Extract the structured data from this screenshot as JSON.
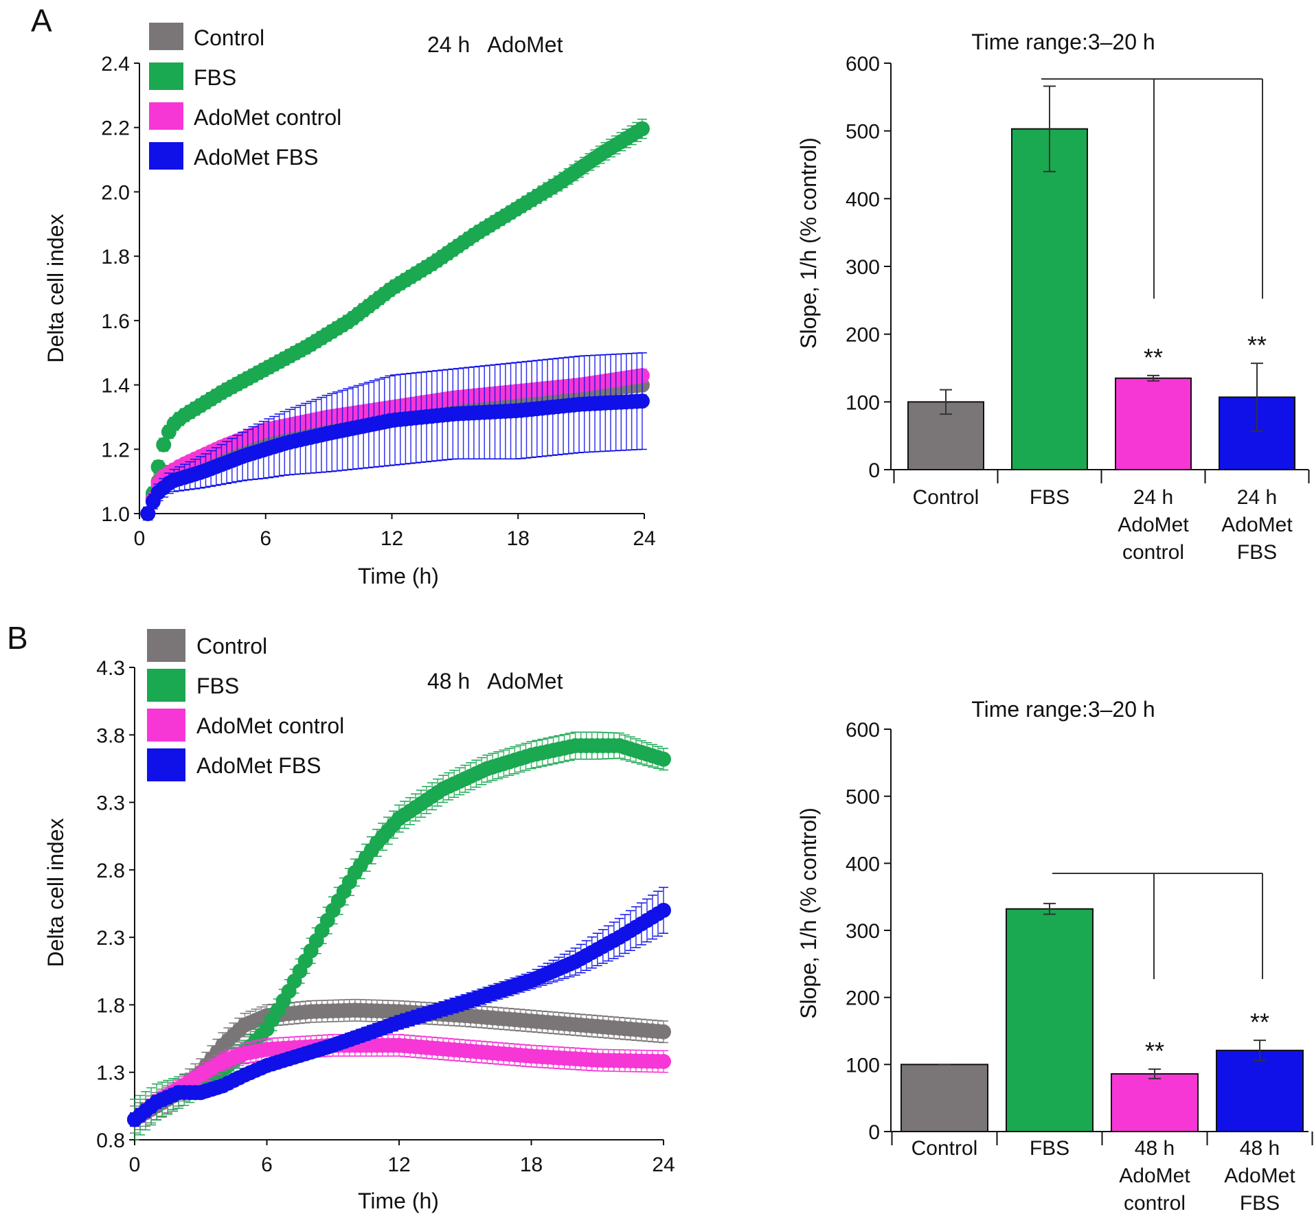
{
  "panels": [
    {
      "letter": "A",
      "annotation": "24 h   AdoMet",
      "legend": [
        {
          "label": "Control",
          "color": "#7a7677"
        },
        {
          "label": "FBS",
          "color": "#1aa850"
        },
        {
          "label": "AdoMet control",
          "color": "#f736d6"
        },
        {
          "label": "AdoMet FBS",
          "color": "#0f11e8"
        }
      ],
      "line_chart": {
        "type": "line",
        "xlabel": "Time (h)",
        "ylabel": "Delta cell index",
        "xlim": [
          0,
          24
        ],
        "ylim": [
          1.0,
          2.4
        ],
        "xticks": [
          0,
          6,
          12,
          18,
          24
        ],
        "yticks": [
          "1.0",
          "1.2",
          "1.4",
          "1.6",
          "1.8",
          "2.0",
          "2.2",
          "2.4"
        ],
        "series": [
          {
            "name": "Control",
            "color": "#7a7677",
            "points": [
              [
                0.4,
                1.0
              ],
              [
                1,
                1.12
              ],
              [
                2,
                1.14
              ],
              [
                4,
                1.19
              ],
              [
                6,
                1.22
              ],
              [
                9,
                1.26
              ],
              [
                12,
                1.3
              ],
              [
                15,
                1.33
              ],
              [
                18,
                1.36
              ],
              [
                21,
                1.38
              ],
              [
                24,
                1.4
              ]
            ],
            "err": [
              [
                0.4,
                0.02
              ],
              [
                6,
                0.03
              ],
              [
                12,
                0.03
              ],
              [
                18,
                0.03
              ],
              [
                24,
                0.03
              ]
            ]
          },
          {
            "name": "FBS",
            "color": "#1aa850",
            "points": [
              [
                0.4,
                1.0
              ],
              [
                0.8,
                1.1
              ],
              [
                1,
                1.19
              ],
              [
                1.5,
                1.27
              ],
              [
                2,
                1.3
              ],
              [
                4,
                1.38
              ],
              [
                6,
                1.45
              ],
              [
                8,
                1.52
              ],
              [
                10,
                1.6
              ],
              [
                12,
                1.7
              ],
              [
                14,
                1.78
              ],
              [
                16,
                1.87
              ],
              [
                18,
                1.95
              ],
              [
                20,
                2.03
              ],
              [
                22,
                2.12
              ],
              [
                24,
                2.2
              ]
            ],
            "err": [
              [
                0.4,
                0.02
              ],
              [
                6,
                0.02
              ],
              [
                12,
                0.02
              ],
              [
                18,
                0.02
              ],
              [
                24,
                0.03
              ]
            ]
          },
          {
            "name": "AdoMet control",
            "color": "#f736d6",
            "points": [
              [
                0.4,
                1.0
              ],
              [
                1,
                1.11
              ],
              [
                2,
                1.15
              ],
              [
                4,
                1.21
              ],
              [
                6,
                1.26
              ],
              [
                9,
                1.3
              ],
              [
                12,
                1.33
              ],
              [
                15,
                1.36
              ],
              [
                18,
                1.38
              ],
              [
                21,
                1.4
              ],
              [
                24,
                1.43
              ]
            ],
            "err": [
              [
                0.4,
                0.01
              ],
              [
                6,
                0.02
              ],
              [
                12,
                0.02
              ],
              [
                18,
                0.02
              ],
              [
                24,
                0.02
              ]
            ]
          },
          {
            "name": "AdoMet FBS",
            "color": "#0f11e8",
            "points": [
              [
                0.4,
                1.0
              ],
              [
                0.8,
                1.06
              ],
              [
                1.5,
                1.1
              ],
              [
                3,
                1.13
              ],
              [
                5,
                1.18
              ],
              [
                7,
                1.22
              ],
              [
                9,
                1.25
              ],
              [
                12,
                1.29
              ],
              [
                15,
                1.31
              ],
              [
                18,
                1.32
              ],
              [
                21,
                1.34
              ],
              [
                24,
                1.35
              ]
            ],
            "err": [
              [
                0.4,
                0.02
              ],
              [
                3,
                0.05
              ],
              [
                6,
                0.09
              ],
              [
                9,
                0.12
              ],
              [
                12,
                0.14
              ],
              [
                15,
                0.14
              ],
              [
                18,
                0.15
              ],
              [
                21,
                0.15
              ],
              [
                24,
                0.15
              ]
            ]
          }
        ]
      },
      "bar_chart": {
        "type": "bar",
        "title": "Time range:3–20 h",
        "ylabel": "Slope, 1/h (% control)",
        "ylim": [
          0,
          600
        ],
        "yticks": [
          "0",
          "100",
          "200",
          "300",
          "400",
          "500",
          "600"
        ],
        "categories": [
          {
            "lines": [
              "Control"
            ]
          },
          {
            "lines": [
              "FBS"
            ]
          },
          {
            "lines": [
              "24 h",
              "AdoMet",
              "control"
            ]
          },
          {
            "lines": [
              "24 h",
              "AdoMet",
              "FBS"
            ]
          }
        ],
        "values": [
          100,
          503,
          135,
          107
        ],
        "errors": [
          18,
          63,
          4,
          50
        ],
        "colors": [
          "#7a7677",
          "#1aa850",
          "#f736d6",
          "#0f11e8"
        ],
        "significance": [
          "",
          "",
          "**",
          "**"
        ]
      }
    },
    {
      "letter": "B",
      "annotation": "48 h   AdoMet",
      "legend": [
        {
          "label": "Control",
          "color": "#7a7677"
        },
        {
          "label": "FBS",
          "color": "#1aa850"
        },
        {
          "label": "AdoMet control",
          "color": "#f736d6"
        },
        {
          "label": "AdoMet FBS",
          "color": "#0f11e8"
        }
      ],
      "line_chart": {
        "type": "line",
        "xlabel": "Time (h)",
        "ylabel": "Delta cell index",
        "xlim": [
          0,
          24
        ],
        "ylim": [
          0.8,
          4.3
        ],
        "xticks": [
          0,
          6,
          12,
          18,
          24
        ],
        "yticks": [
          "0.8",
          "1.3",
          "1.8",
          "2.3",
          "2.8",
          "3.3",
          "3.8",
          "4.3"
        ],
        "series": [
          {
            "name": "Control",
            "color": "#7a7677",
            "points": [
              [
                0,
                0.95
              ],
              [
                1,
                1.05
              ],
              [
                2,
                1.15
              ],
              [
                3,
                1.3
              ],
              [
                4,
                1.5
              ],
              [
                5,
                1.65
              ],
              [
                6,
                1.72
              ],
              [
                8,
                1.75
              ],
              [
                10,
                1.76
              ],
              [
                12,
                1.75
              ],
              [
                15,
                1.72
              ],
              [
                18,
                1.68
              ],
              [
                21,
                1.64
              ],
              [
                24,
                1.6
              ]
            ],
            "err": [
              [
                0,
                0.1
              ],
              [
                3,
                0.1
              ],
              [
                6,
                0.08
              ],
              [
                9,
                0.08
              ],
              [
                12,
                0.08
              ],
              [
                15,
                0.08
              ],
              [
                18,
                0.08
              ],
              [
                21,
                0.08
              ],
              [
                24,
                0.08
              ]
            ]
          },
          {
            "name": "FBS",
            "color": "#1aa850",
            "points": [
              [
                0,
                0.95
              ],
              [
                1,
                1.08
              ],
              [
                2,
                1.15
              ],
              [
                3,
                1.22
              ],
              [
                4,
                1.32
              ],
              [
                5,
                1.45
              ],
              [
                6,
                1.62
              ],
              [
                7,
                1.9
              ],
              [
                8,
                2.2
              ],
              [
                9,
                2.5
              ],
              [
                10,
                2.78
              ],
              [
                11,
                3.0
              ],
              [
                12,
                3.18
              ],
              [
                14,
                3.4
              ],
              [
                16,
                3.55
              ],
              [
                18,
                3.65
              ],
              [
                20,
                3.72
              ],
              [
                22,
                3.72
              ],
              [
                24,
                3.62
              ]
            ],
            "err": [
              [
                0,
                0.15
              ],
              [
                3,
                0.1
              ],
              [
                6,
                0.08
              ],
              [
                9,
                0.1
              ],
              [
                12,
                0.1
              ],
              [
                15,
                0.1
              ],
              [
                18,
                0.1
              ],
              [
                21,
                0.1
              ],
              [
                24,
                0.08
              ]
            ]
          },
          {
            "name": "AdoMet control",
            "color": "#f736d6",
            "points": [
              [
                0,
                0.95
              ],
              [
                1,
                1.08
              ],
              [
                2,
                1.18
              ],
              [
                3,
                1.28
              ],
              [
                4,
                1.38
              ],
              [
                5,
                1.44
              ],
              [
                6,
                1.47
              ],
              [
                9,
                1.5
              ],
              [
                12,
                1.5
              ],
              [
                15,
                1.46
              ],
              [
                18,
                1.42
              ],
              [
                21,
                1.39
              ],
              [
                24,
                1.38
              ]
            ],
            "err": [
              [
                0,
                0.05
              ],
              [
                6,
                0.08
              ],
              [
                9,
                0.08
              ],
              [
                12,
                0.08
              ],
              [
                15,
                0.08
              ],
              [
                18,
                0.08
              ],
              [
                21,
                0.08
              ],
              [
                24,
                0.08
              ]
            ]
          },
          {
            "name": "AdoMet FBS",
            "color": "#0f11e8",
            "points": [
              [
                0,
                0.95
              ],
              [
                1,
                1.08
              ],
              [
                2,
                1.15
              ],
              [
                3,
                1.15
              ],
              [
                4,
                1.2
              ],
              [
                5,
                1.28
              ],
              [
                6,
                1.35
              ],
              [
                9,
                1.5
              ],
              [
                12,
                1.67
              ],
              [
                15,
                1.82
              ],
              [
                18,
                1.98
              ],
              [
                20,
                2.12
              ],
              [
                22,
                2.3
              ],
              [
                24,
                2.5
              ]
            ],
            "err": [
              [
                0,
                0.05
              ],
              [
                6,
                0.04
              ],
              [
                12,
                0.05
              ],
              [
                18,
                0.06
              ],
              [
                20,
                0.1
              ],
              [
                22,
                0.14
              ],
              [
                24,
                0.17
              ]
            ]
          }
        ]
      },
      "bar_chart": {
        "type": "bar",
        "title": "Time range:3–20 h",
        "ylabel": "Slope, 1/h (% control)",
        "ylim": [
          0,
          600
        ],
        "yticks": [
          "0",
          "100",
          "200",
          "300",
          "400",
          "500",
          "600"
        ],
        "categories": [
          {
            "lines": [
              "Control"
            ]
          },
          {
            "lines": [
              "FBS"
            ]
          },
          {
            "lines": [
              "48 h",
              "AdoMet",
              "control"
            ]
          },
          {
            "lines": [
              "48 h",
              "AdoMet",
              "FBS"
            ]
          }
        ],
        "values": [
          100,
          332,
          86,
          121
        ],
        "errors": [
          0,
          8,
          7,
          15
        ],
        "colors": [
          "#7a7677",
          "#1aa850",
          "#f736d6",
          "#0f11e8"
        ],
        "significance": [
          "",
          "",
          "**",
          "**"
        ]
      }
    }
  ]
}
